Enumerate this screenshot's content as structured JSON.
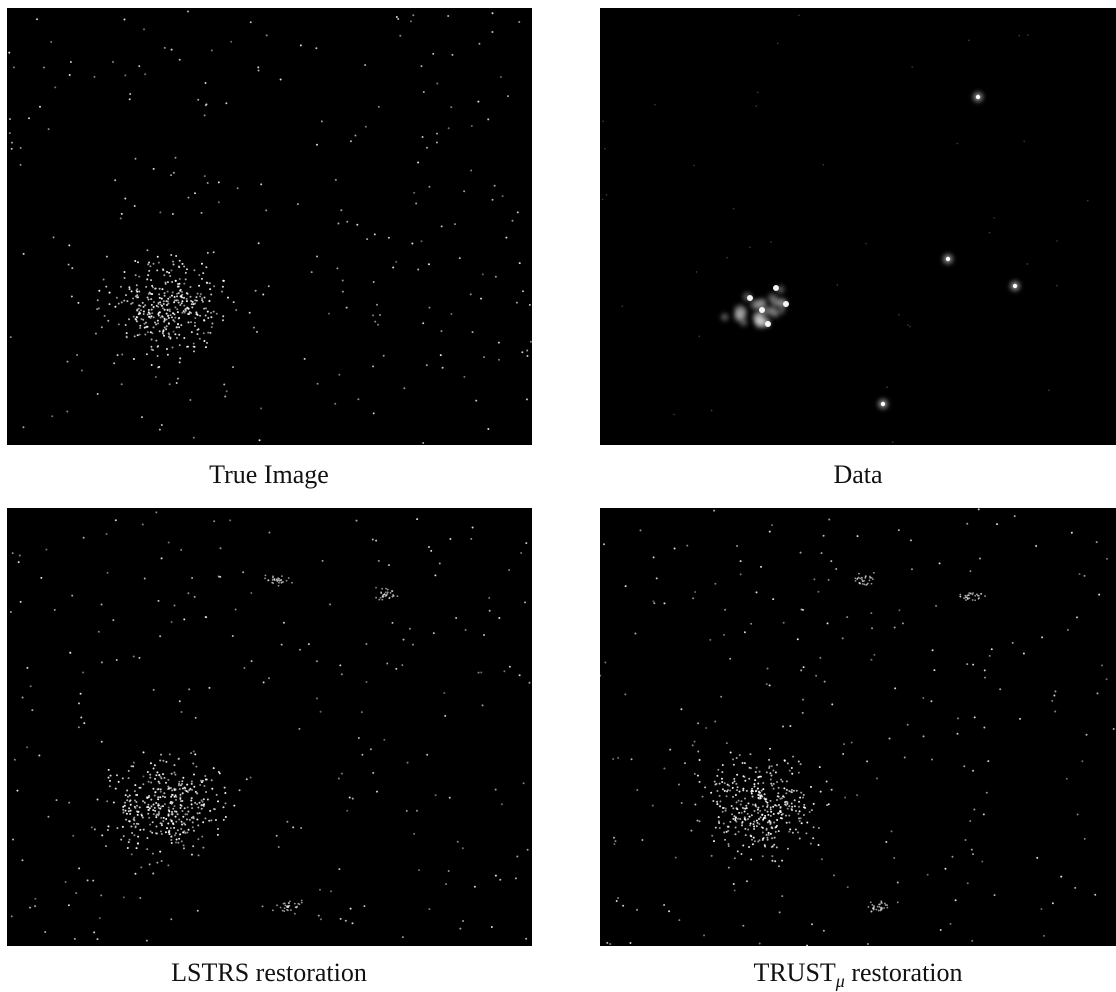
{
  "panels": [
    {
      "caption": "True Image"
    },
    {
      "caption": "Data"
    },
    {
      "caption": "LSTRS restoration"
    },
    {
      "caption": {
        "main": "TRUST",
        "sub": "μ",
        "rest": " restoration"
      }
    }
  ]
}
